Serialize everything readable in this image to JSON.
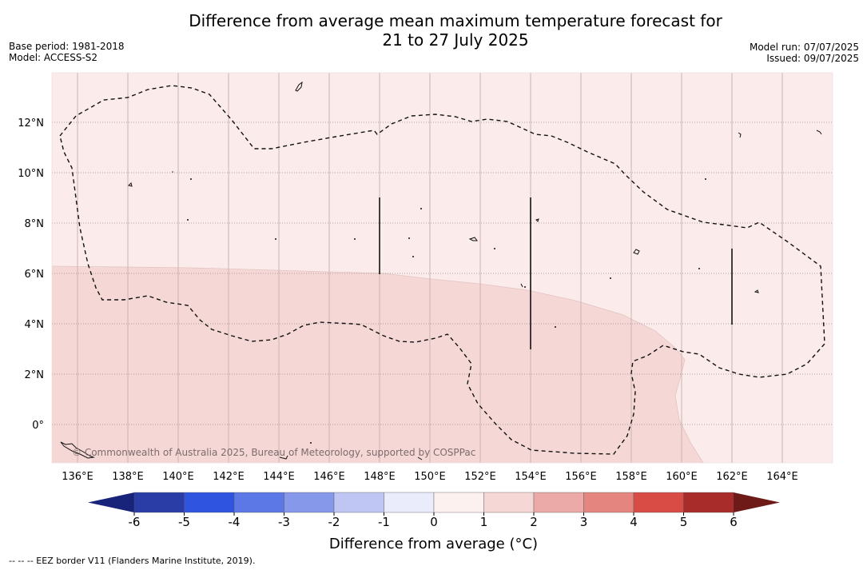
{
  "title": {
    "line1": "Difference from average mean maximum temperature forecast for",
    "line2": "21 to 27 July 2025"
  },
  "meta_left": {
    "base_period": "Base period: 1981-2018",
    "model": "Model: ACCESS-S2"
  },
  "meta_right": {
    "model_run": "Model run: 07/07/2025",
    "issued": "Issued: 09/07/2025"
  },
  "copyright": "© Commonwealth of Australia 2025, Bureau of Meteorology, supported by COSPPac",
  "map": {
    "lon_range": [
      135,
      166
    ],
    "lat_range": [
      -1.5,
      14
    ],
    "lon_ticks": [
      "136°E",
      "138°E",
      "140°E",
      "142°E",
      "144°E",
      "146°E",
      "148°E",
      "150°E",
      "152°E",
      "154°E",
      "156°E",
      "158°E",
      "160°E",
      "162°E",
      "164°E"
    ],
    "lat_ticks": [
      "12°N",
      "10°N",
      "8°N",
      "6°N",
      "4°N",
      "2°N",
      "0°"
    ],
    "zones": [
      {
        "range": "1 to 2",
        "color": "#f5d7d6"
      },
      {
        "range": "0 to 1",
        "color": "#fbebea"
      }
    ],
    "grid": true
  },
  "colorbar": {
    "labels": [
      "-6",
      "-5",
      "-4",
      "-3",
      "-2",
      "-1",
      "0",
      "1",
      "2",
      "3",
      "4",
      "5",
      "6"
    ],
    "colors": [
      "#2a3da7",
      "#2f55e0",
      "#5b78e6",
      "#8598ea",
      "#bfc6f3",
      "#eaebfb",
      "#fdf1f0",
      "#f5d7d6",
      "#ebaaa7",
      "#e4857f",
      "#d94c45",
      "#a82d2a"
    ],
    "low_extend_color": "#17247a",
    "high_extend_color": "#6e1a18",
    "title": "Difference from average (°C)"
  },
  "footnote": "-- -- -- EEZ border V11 (Flanders Marine Institute, 2019)."
}
